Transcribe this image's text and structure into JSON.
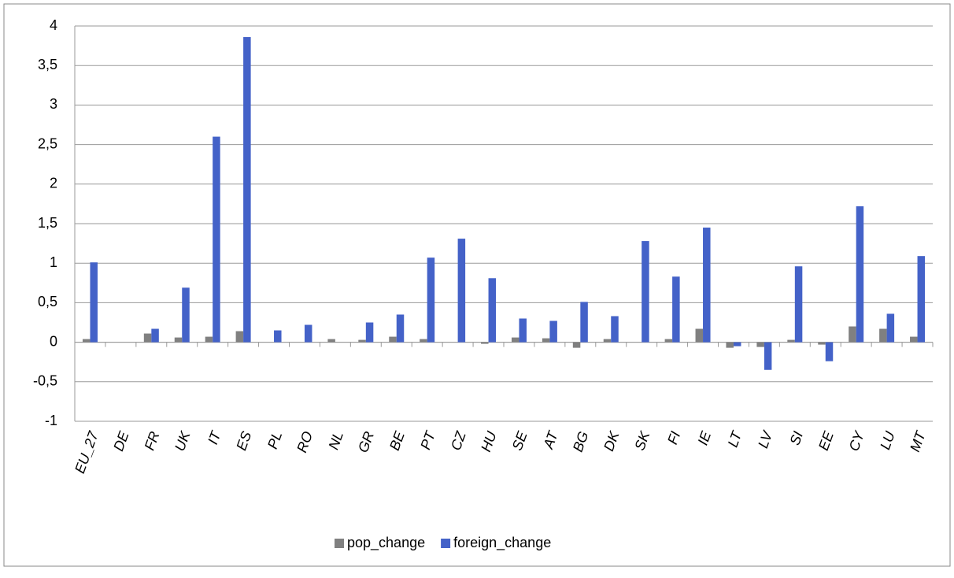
{
  "chart_data": {
    "type": "bar",
    "categories": [
      "EU_27",
      "DE",
      "FR",
      "UK",
      "IT",
      "ES",
      "PL",
      "RO",
      "NL",
      "GR",
      "BE",
      "PT",
      "CZ",
      "HU",
      "SE",
      "AT",
      "BG",
      "DK",
      "SK",
      "FI",
      "IE",
      "LT",
      "LV",
      "SI",
      "EE",
      "CY",
      "LU",
      "MT"
    ],
    "series": [
      {
        "name": "pop_change",
        "color": "#808080",
        "values": [
          0.04,
          0,
          0.11,
          0.06,
          0.07,
          0.14,
          0,
          0,
          0.04,
          0.03,
          0.07,
          0.04,
          0,
          -0.02,
          0.06,
          0.05,
          -0.07,
          0.04,
          0,
          0.04,
          0.17,
          -0.07,
          -0.06,
          0.03,
          -0.03,
          0.2,
          0.17,
          0.07
        ]
      },
      {
        "name": "foreign_change",
        "color": "#4462c8",
        "values": [
          1.01,
          0,
          0.17,
          0.69,
          2.6,
          3.86,
          0.15,
          0.22,
          0,
          0.25,
          0.35,
          1.07,
          1.31,
          0.81,
          0.3,
          0.27,
          0.51,
          0.33,
          1.28,
          0.83,
          1.45,
          -0.05,
          -0.35,
          0.96,
          -0.24,
          1.72,
          0.36,
          1.09
        ]
      }
    ],
    "ylim": [
      -1,
      4
    ],
    "yticks": [
      -1,
      {
        "value": -0.5,
        "label": "-0,5"
      },
      0,
      {
        "value": 0.5,
        "label": "0,5"
      },
      1,
      {
        "value": 1.5,
        "label": "1,5"
      },
      2,
      {
        "value": 2.5,
        "label": "2,5"
      },
      3,
      {
        "value": 3.5,
        "label": "3,5"
      },
      4
    ],
    "grid": true,
    "legend": "bottom"
  }
}
